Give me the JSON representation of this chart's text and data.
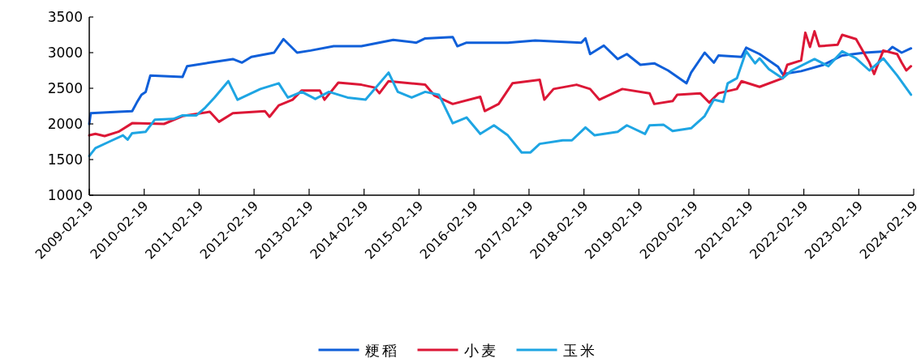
{
  "chart_data": {
    "type": "line",
    "legend": "bottom",
    "grid": false,
    "line_style": "solid",
    "xlim": [
      "2009-02-19",
      "2024-02-19"
    ],
    "xticks": [
      "2009-02-19",
      "2010-02-19",
      "2011-02-19",
      "2012-02-19",
      "2013-02-19",
      "2014-02-19",
      "2015-02-19",
      "2016-02-19",
      "2017-02-19",
      "2018-02-19",
      "2019-02-19",
      "2020-02-19",
      "2021-02-19",
      "2022-02-19",
      "2023-02-19",
      "2024-02-19"
    ],
    "ylim": [
      1000,
      3500
    ],
    "yticks": [
      1000,
      1500,
      2000,
      2500,
      3000,
      3500
    ],
    "series": [
      {
        "name": "粳稻",
        "color": "#0f5fd9",
        "x": [
          "2009-02-19",
          "2009-03",
          "2009-09",
          "2009-12",
          "2010-01",
          "2010-02",
          "2010-03",
          "2010-04",
          "2010-11",
          "2010-12",
          "2011-05",
          "2011-10",
          "2011-12",
          "2012-02",
          "2012-07",
          "2012-09",
          "2012-12",
          "2013-03",
          "2013-08",
          "2014-02",
          "2014-09",
          "2015-02",
          "2015-04",
          "2015-10",
          "2015-11",
          "2016-01",
          "2016-10",
          "2017-04",
          "2018-02",
          "2018-03",
          "2018-04",
          "2018-07",
          "2018-10",
          "2018-12",
          "2019-03",
          "2019-06",
          "2019-09",
          "2020-01",
          "2020-02",
          "2020-05",
          "2020-07",
          "2020-08",
          "2021-01",
          "2021-02",
          "2021-05",
          "2021-09",
          "2021-10",
          "2022-02",
          "2022-07",
          "2022-11",
          "2023-04",
          "2023-09",
          "2023-10",
          "2023-12",
          "2024-02"
        ],
        "values": [
          2000,
          2150,
          2170,
          2180,
          2300,
          2410,
          2450,
          2680,
          2660,
          2810,
          2860,
          2910,
          2860,
          2940,
          3000,
          3190,
          3000,
          3030,
          3090,
          3090,
          3180,
          3140,
          3200,
          3220,
          3090,
          3140,
          3140,
          3170,
          3140,
          3200,
          2980,
          3100,
          2910,
          2980,
          2830,
          2850,
          2750,
          2570,
          2720,
          3000,
          2860,
          2960,
          2940,
          3070,
          2980,
          2800,
          2700,
          2740,
          2830,
          2960,
          3000,
          3020,
          3080,
          3000,
          3060
        ]
      },
      {
        "name": "小麦",
        "color": "#dc1736",
        "x": [
          "2009-02-19",
          "2009-04",
          "2009-06",
          "2009-09",
          "2009-12",
          "2010-07",
          "2010-11",
          "2011-05",
          "2011-07",
          "2011-10",
          "2012-05",
          "2012-06",
          "2012-08",
          "2012-11",
          "2013-01",
          "2013-05",
          "2013-06",
          "2013-09",
          "2014-02",
          "2014-05",
          "2014-06",
          "2014-08",
          "2015-04",
          "2015-06",
          "2015-10",
          "2016-04",
          "2016-05",
          "2016-08",
          "2016-11",
          "2017-05",
          "2017-06",
          "2017-08",
          "2018-01",
          "2018-04",
          "2018-06",
          "2018-09",
          "2018-11",
          "2019-05",
          "2019-06",
          "2019-10",
          "2019-11",
          "2020-04",
          "2020-06",
          "2020-08",
          "2020-12",
          "2021-01",
          "2021-05",
          "2021-10",
          "2021-11",
          "2022-02",
          "2022-03",
          "2022-04",
          "2022-05",
          "2022-06",
          "2022-10",
          "2022-11",
          "2023-02",
          "2023-05",
          "2023-06",
          "2023-08",
          "2023-11",
          "2023-12",
          "2024-01",
          "2024-02"
        ],
        "values": [
          1840,
          1860,
          1830,
          1890,
          2010,
          2000,
          2110,
          2170,
          2030,
          2150,
          2180,
          2100,
          2260,
          2340,
          2470,
          2470,
          2340,
          2580,
          2550,
          2510,
          2430,
          2600,
          2550,
          2400,
          2280,
          2380,
          2180,
          2280,
          2570,
          2620,
          2340,
          2490,
          2550,
          2490,
          2340,
          2430,
          2490,
          2430,
          2280,
          2320,
          2410,
          2430,
          2300,
          2430,
          2490,
          2600,
          2520,
          2640,
          2830,
          2890,
          3280,
          3080,
          3300,
          3090,
          3110,
          3250,
          3190,
          2860,
          2700,
          3030,
          2980,
          2860,
          2750,
          2810
        ]
      },
      {
        "name": "玉米",
        "color": "#1ea5e3",
        "x": [
          "2009-02-19",
          "2009-04",
          "2009-07",
          "2009-10",
          "2009-11",
          "2009-12",
          "2010-03",
          "2010-05",
          "2010-09",
          "2010-11",
          "2011-02",
          "2011-04",
          "2011-06",
          "2011-09",
          "2011-11",
          "2012-04",
          "2012-08",
          "2012-10",
          "2013-01",
          "2013-04",
          "2013-07",
          "2013-11",
          "2014-03",
          "2014-08",
          "2014-10",
          "2015-01",
          "2015-04",
          "2015-07",
          "2015-10",
          "2016-01",
          "2016-04",
          "2016-07",
          "2016-10",
          "2017-01",
          "2017-03",
          "2017-05",
          "2017-10",
          "2017-12",
          "2018-03",
          "2018-05",
          "2018-10",
          "2018-12",
          "2019-04",
          "2019-05",
          "2019-08",
          "2019-10",
          "2020-02",
          "2020-05",
          "2020-07",
          "2020-09",
          "2020-10",
          "2020-12",
          "2021-02",
          "2021-04",
          "2021-05",
          "2021-07",
          "2021-10",
          "2021-12",
          "2022-05",
          "2022-08",
          "2022-11",
          "2023-02",
          "2023-05",
          "2023-08",
          "2023-11",
          "2024-02"
        ],
        "values": [
          1550,
          1660,
          1750,
          1840,
          1780,
          1870,
          1890,
          2060,
          2070,
          2120,
          2120,
          2230,
          2370,
          2600,
          2340,
          2490,
          2570,
          2370,
          2450,
          2350,
          2450,
          2370,
          2340,
          2720,
          2450,
          2370,
          2450,
          2410,
          2010,
          2090,
          1860,
          1980,
          1840,
          1600,
          1600,
          1720,
          1770,
          1770,
          1950,
          1840,
          1890,
          1980,
          1860,
          1980,
          1990,
          1900,
          1940,
          2110,
          2340,
          2310,
          2570,
          2640,
          3020,
          2850,
          2920,
          2770,
          2640,
          2750,
          2910,
          2810,
          3020,
          2920,
          2750,
          2920,
          2680,
          2410
        ]
      }
    ]
  }
}
